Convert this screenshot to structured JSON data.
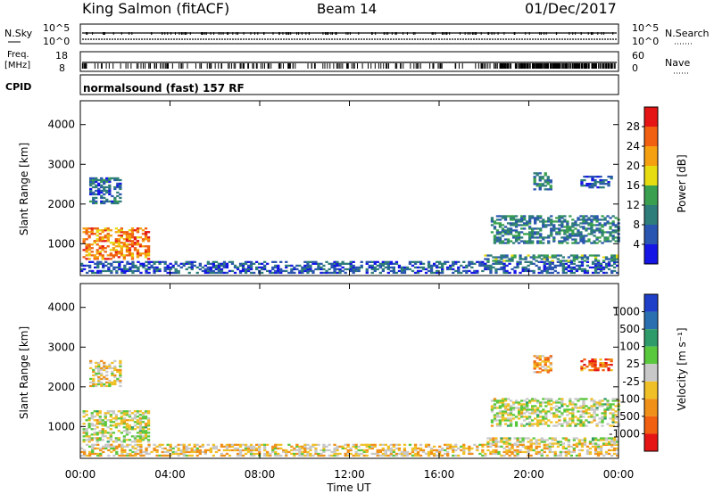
{
  "header": {
    "site": "King Salmon (fitACF)",
    "beam": "Beam 14",
    "date": "01/Dec/2017"
  },
  "strips": {
    "nsky_label": "N.Sky",
    "nsearch_label": "N.Search",
    "nsky_ticks": [
      "10^5",
      "10^0"
    ],
    "nsearch_ticks": [
      "10^5",
      "10^0"
    ],
    "freq_label_1": "Freq.",
    "freq_label_2": "[MHz]",
    "freq_ticks": [
      "18",
      "8"
    ],
    "nave_label": "Nave",
    "nave_ticks": [
      "60",
      "0"
    ],
    "cpid_label": "CPID",
    "cpid_text": "normalsound (fast) 157 RF"
  },
  "chart_data": [
    {
      "type": "heatmap",
      "name": "power",
      "ylabel": "Slant Range [km]",
      "yticks": [
        "1000",
        "2000",
        "3000",
        "4000"
      ],
      "ylim": [
        200,
        4600
      ],
      "xlim": [
        0,
        24
      ],
      "xticks": [],
      "colorbar_label": "Power [dB]",
      "colorbar_ticks": [
        "4",
        "8",
        "12",
        "16",
        "20",
        "24",
        "28"
      ],
      "colorbar_colors": [
        "#1515e6",
        "#2a55b0",
        "#2f7d7a",
        "#3aa050",
        "#e6dc10",
        "#f5a010",
        "#f06010",
        "#e61515"
      ],
      "regions": [
        {
          "t0": 0.1,
          "t1": 3.0,
          "r0": 600,
          "r1": 1400,
          "level": 0.75
        },
        {
          "t0": 0.4,
          "t1": 1.8,
          "r0": 2000,
          "r1": 2650,
          "level": 0.25
        },
        {
          "t0": 0.0,
          "t1": 24.0,
          "r0": 250,
          "r1": 550,
          "level": 0.2
        },
        {
          "t0": 18.0,
          "t1": 24.0,
          "r0": 550,
          "r1": 700,
          "level": 0.35
        },
        {
          "t0": 18.3,
          "t1": 24.0,
          "r0": 1000,
          "r1": 1700,
          "level": 0.3
        },
        {
          "t0": 20.2,
          "t1": 21.0,
          "r0": 2350,
          "r1": 2800,
          "level": 0.3
        },
        {
          "t0": 22.3,
          "t1": 23.7,
          "r0": 2400,
          "r1": 2700,
          "level": 0.2
        }
      ]
    },
    {
      "type": "heatmap",
      "name": "velocity",
      "ylabel": "Slant Range [km]",
      "yticks": [
        "1000",
        "2000",
        "3000",
        "4000"
      ],
      "ylim": [
        200,
        4600
      ],
      "xlim": [
        0,
        24
      ],
      "xlabel": "Time UT",
      "xticks": [
        "00:00",
        "04:00",
        "08:00",
        "12:00",
        "16:00",
        "20:00",
        "00:00"
      ],
      "colorbar_label": "Velocity [m s⁻¹]",
      "colorbar_ticks": [
        "1000",
        "500",
        "100",
        "25",
        "-25",
        "-100",
        "-500",
        "-1000"
      ],
      "colorbar_colors": [
        "#1f3fc8",
        "#2a70b0",
        "#2f9a6a",
        "#5ac83c",
        "#c8c8c8",
        "#f0c028",
        "#f09018",
        "#f06010",
        "#e61515"
      ],
      "regions": [
        {
          "t0": 0.1,
          "t1": 3.0,
          "r0": 600,
          "r1": 1400,
          "level": 0.5
        },
        {
          "t0": 0.4,
          "t1": 1.8,
          "r0": 2000,
          "r1": 2650,
          "level": 0.55
        },
        {
          "t0": 0.0,
          "t1": 24.0,
          "r0": 250,
          "r1": 550,
          "level": 0.6
        },
        {
          "t0": 18.0,
          "t1": 24.0,
          "r0": 550,
          "r1": 700,
          "level": 0.5
        },
        {
          "t0": 18.3,
          "t1": 24.0,
          "r0": 1000,
          "r1": 1700,
          "level": 0.5
        },
        {
          "t0": 20.2,
          "t1": 21.0,
          "r0": 2350,
          "r1": 2800,
          "level": 0.7
        },
        {
          "t0": 22.3,
          "t1": 23.7,
          "r0": 2400,
          "r1": 2700,
          "level": 0.8
        }
      ]
    }
  ]
}
